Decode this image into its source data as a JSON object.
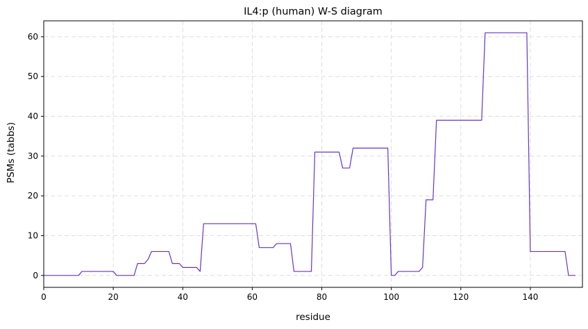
{
  "chart_data": {
    "type": "line",
    "title": "IL4:p (human) W-S diagram",
    "xlabel": "residue",
    "ylabel": "PSMs (tabbs)",
    "xlim": [
      0,
      155
    ],
    "ylim": [
      -3,
      64
    ],
    "xticks": [
      0,
      20,
      40,
      60,
      80,
      100,
      120,
      140
    ],
    "yticks": [
      0,
      10,
      20,
      30,
      40,
      50,
      60
    ],
    "grid": true,
    "line_color": "#6633cc",
    "series": [
      {
        "x": [
          0,
          10,
          11,
          20,
          21,
          26,
          27,
          29,
          30,
          31,
          36,
          37,
          39,
          40,
          44,
          45,
          46,
          61,
          62,
          66,
          67,
          71,
          72,
          77,
          78,
          85,
          86,
          88,
          89,
          99,
          100,
          101,
          102,
          108,
          109,
          110,
          112,
          113,
          126,
          127,
          139,
          140,
          150,
          151,
          153
        ],
        "y": [
          0,
          0,
          1,
          1,
          0,
          0,
          3,
          3,
          4,
          6,
          6,
          3,
          3,
          2,
          2,
          1,
          13,
          13,
          7,
          7,
          8,
          8,
          1,
          1,
          31,
          31,
          27,
          27,
          32,
          32,
          0,
          0,
          1,
          1,
          2,
          19,
          19,
          39,
          39,
          61,
          61,
          6,
          6,
          0,
          0
        ]
      }
    ]
  }
}
